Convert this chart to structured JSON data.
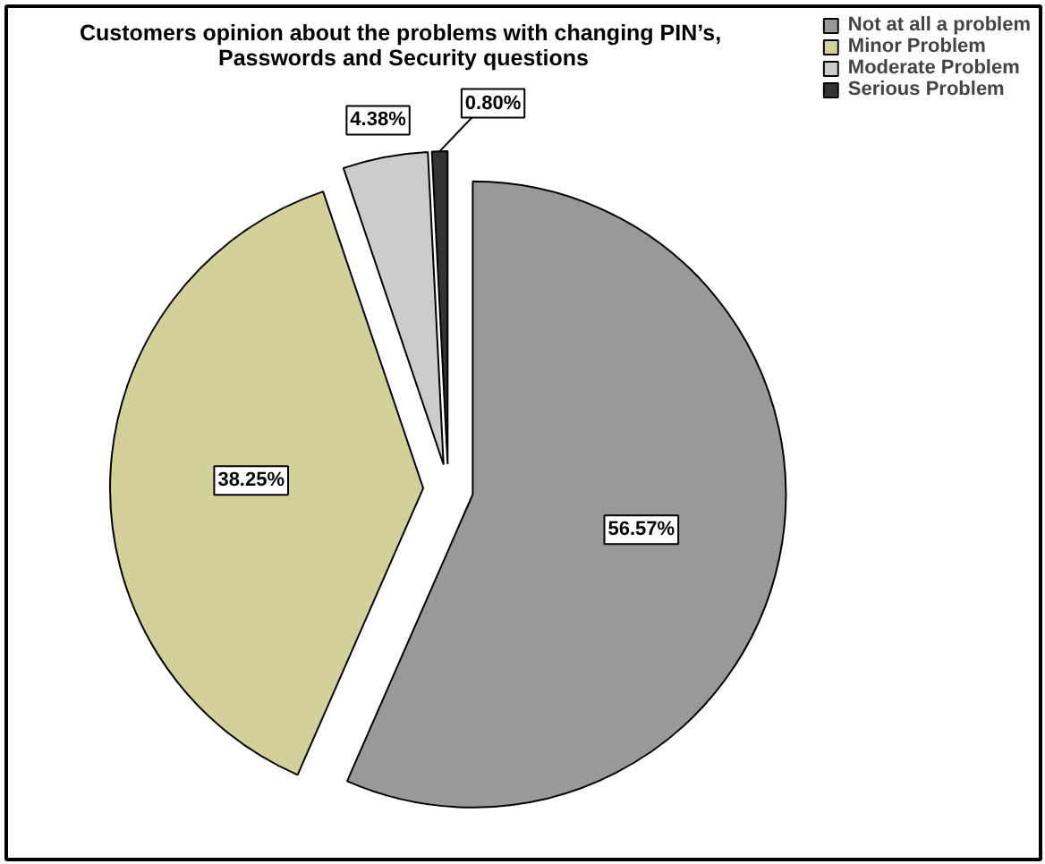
{
  "chart_data": {
    "type": "pie",
    "title": "Customers opinion about the problems with changing  PIN’s,\nPasswords and Security questions",
    "categories": [
      "Not at all a problem",
      "Minor Problem",
      "Moderate Problem",
      "Serious Problem"
    ],
    "values": [
      56.57,
      38.25,
      4.38,
      0.8
    ],
    "colors": [
      "#999999",
      "#d4d09a",
      "#cccccc",
      "#333333"
    ],
    "value_labels": [
      "56.57%",
      "38.25%",
      "4.38%",
      "0.80%"
    ],
    "legend": "top right"
  }
}
